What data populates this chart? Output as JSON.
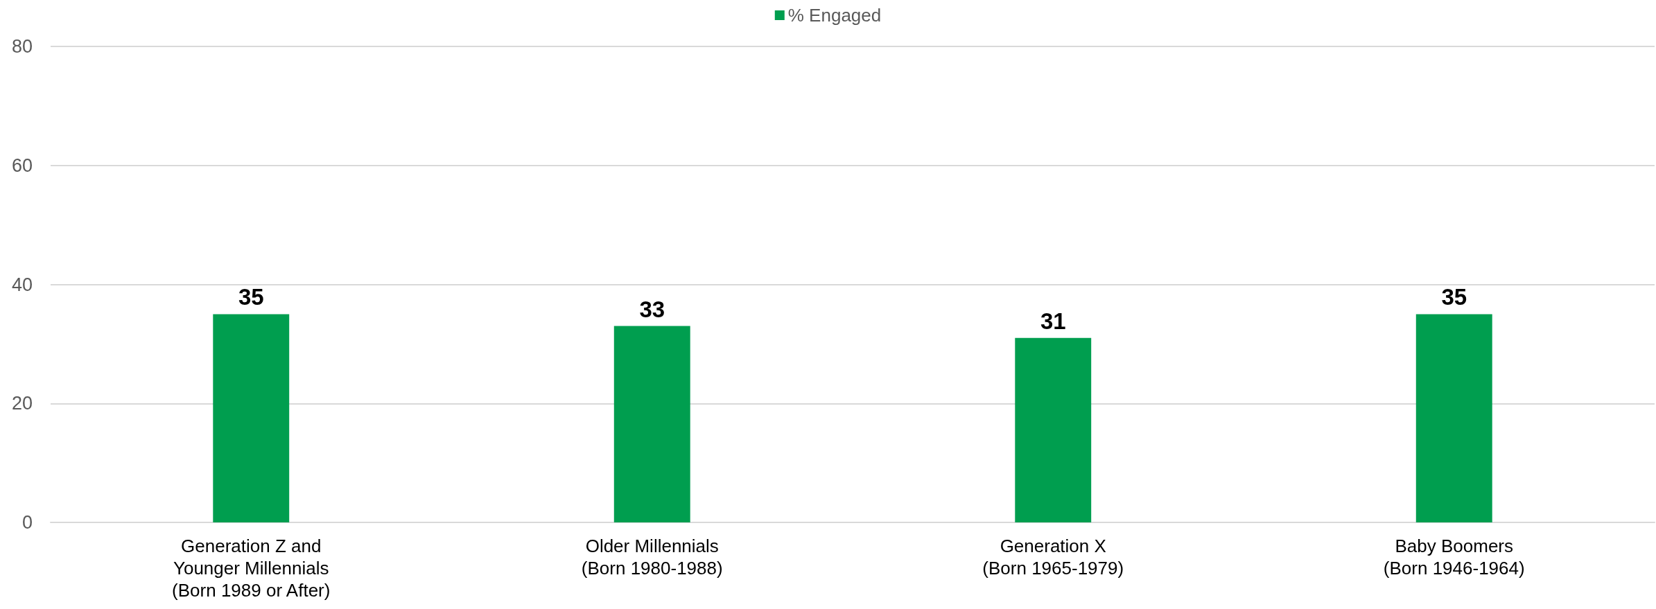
{
  "chart_data": {
    "type": "bar",
    "categories": [
      "Generation Z and\nYounger Millennials\n(Born 1989 or After)",
      "Older Millennials\n(Born 1980-1988)",
      "Generation X\n(Born 1965-1979)",
      "Baby Boomers\n(Born 1946-1964)"
    ],
    "series": [
      {
        "name": "% Engaged",
        "color": "#009e4f",
        "values": [
          35,
          33,
          31,
          35
        ]
      }
    ],
    "ylim": [
      0,
      80
    ],
    "yticks": [
      0,
      20,
      40,
      60,
      80
    ],
    "grid": "y",
    "legend": "top",
    "data_labels": true
  }
}
